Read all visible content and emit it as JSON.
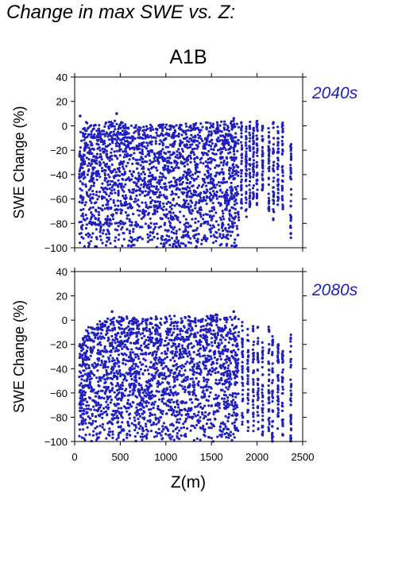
{
  "page": {
    "title": "Change in max SWE vs. Z:",
    "scenario": "A1B"
  },
  "chart_data": [
    {
      "type": "scatter",
      "period": "2040s",
      "xlabel": "",
      "ylabel": "SWE Change (%)",
      "xlim": [
        0,
        2500
      ],
      "ylim": [
        -100,
        40
      ],
      "xticks": [
        0,
        500,
        1000,
        1500,
        2000,
        2500
      ],
      "yticks": [
        -100,
        -80,
        -60,
        -40,
        -20,
        0,
        20,
        40
      ],
      "grid": false,
      "point_color": "#2020c0",
      "envelope": {
        "z": [
          50,
          150,
          250,
          350,
          450,
          550,
          650,
          750,
          850,
          950,
          1050,
          1150,
          1250,
          1350,
          1450,
          1550,
          1650,
          1750,
          1800
        ],
        "upper": [
          6,
          3,
          2,
          3,
          5,
          2,
          2,
          1,
          1,
          1,
          2,
          1,
          2,
          2,
          3,
          3,
          4,
          5,
          4
        ],
        "lower": [
          -100,
          -100,
          -100,
          -100,
          -100,
          -100,
          -100,
          -100,
          -100,
          -100,
          -100,
          -100,
          -100,
          -100,
          -100,
          -100,
          -100,
          -100,
          -100
        ]
      },
      "columns": [
        {
          "z": 1830,
          "max": 4,
          "min": -70
        },
        {
          "z": 1880,
          "max": 3,
          "min": -75
        },
        {
          "z": 1920,
          "max": 4,
          "min": -70
        },
        {
          "z": 1960,
          "max": 2,
          "min": -60
        },
        {
          "z": 2000,
          "max": 4,
          "min": -65
        },
        {
          "z": 2060,
          "max": 2,
          "min": -55
        },
        {
          "z": 2130,
          "max": -2,
          "min": -70
        },
        {
          "z": 2180,
          "max": 3,
          "min": -80
        },
        {
          "z": 2230,
          "max": 0,
          "min": -65
        },
        {
          "z": 2280,
          "max": 3,
          "min": -70
        },
        {
          "z": 2370,
          "max": -10,
          "min": -95
        }
      ],
      "outliers": [
        {
          "z": 60,
          "y": 8
        },
        {
          "z": 460,
          "y": 10
        },
        {
          "z": 1745,
          "y": 6
        }
      ]
    },
    {
      "type": "scatter",
      "period": "2080s",
      "xlabel": "Z(m)",
      "ylabel": "SWE Change (%)",
      "xlim": [
        0,
        2500
      ],
      "ylim": [
        -100,
        40
      ],
      "xticks": [
        0,
        500,
        1000,
        1500,
        2000,
        2500
      ],
      "yticks": [
        -100,
        -80,
        -60,
        -40,
        -20,
        0,
        20,
        40
      ],
      "grid": false,
      "point_color": "#2020c0",
      "envelope": {
        "z": [
          50,
          150,
          250,
          350,
          450,
          550,
          650,
          750,
          850,
          950,
          1050,
          1150,
          1250,
          1350,
          1450,
          1550,
          1650,
          1750,
          1800
        ],
        "upper": [
          -20,
          -5,
          0,
          1,
          3,
          3,
          2,
          2,
          3,
          3,
          4,
          3,
          4,
          2,
          4,
          5,
          3,
          3,
          2
        ],
        "lower": [
          -100,
          -100,
          -100,
          -100,
          -100,
          -100,
          -100,
          -100,
          -100,
          -100,
          -100,
          -100,
          -100,
          -100,
          -100,
          -100,
          -100,
          -100,
          -100
        ]
      },
      "columns": [
        {
          "z": 1840,
          "max": 0,
          "min": -95
        },
        {
          "z": 1900,
          "max": -5,
          "min": -95
        },
        {
          "z": 1960,
          "max": -3,
          "min": -95
        },
        {
          "z": 2010,
          "max": -5,
          "min": -90
        },
        {
          "z": 2060,
          "max": -10,
          "min": -95
        },
        {
          "z": 2130,
          "max": -5,
          "min": -95
        },
        {
          "z": 2170,
          "max": -10,
          "min": -100
        },
        {
          "z": 2230,
          "max": -15,
          "min": -95
        },
        {
          "z": 2280,
          "max": -25,
          "min": -95
        },
        {
          "z": 2370,
          "max": -10,
          "min": -100
        }
      ],
      "outliers": [
        {
          "z": 410,
          "y": 7
        },
        {
          "z": 1745,
          "y": 7
        }
      ]
    }
  ]
}
